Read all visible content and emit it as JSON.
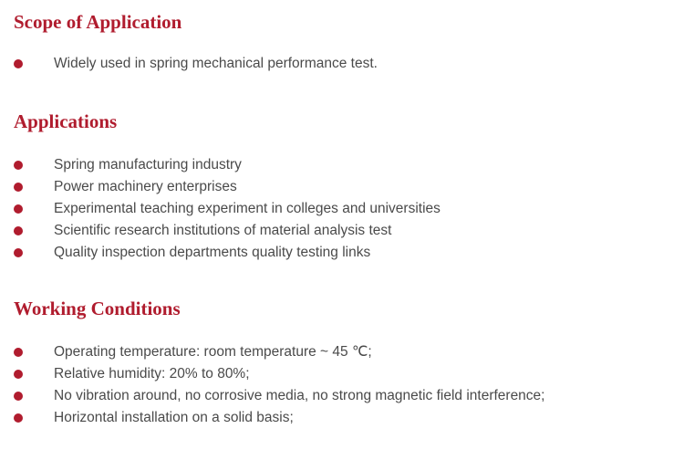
{
  "accent_color": "#b01c2e",
  "bullet_icon": "filled-circle",
  "sections": [
    {
      "title": "Scope of Application",
      "items": [
        "Widely used in spring mechanical performance test."
      ]
    },
    {
      "title": "Applications",
      "items": [
        "Spring manufacturing industry",
        "Power machinery enterprises",
        "Experimental teaching experiment in colleges and universities",
        "Scientific research institutions of material analysis test",
        "Quality inspection departments quality testing links"
      ]
    },
    {
      "title": "Working Conditions",
      "items": [
        "Operating temperature: room temperature ~ 45 ℃;",
        "Relative humidity: 20% to 80%;",
        "No vibration around, no corrosive media, no strong magnetic field interference;",
        "Horizontal installation on a solid basis;"
      ]
    }
  ]
}
